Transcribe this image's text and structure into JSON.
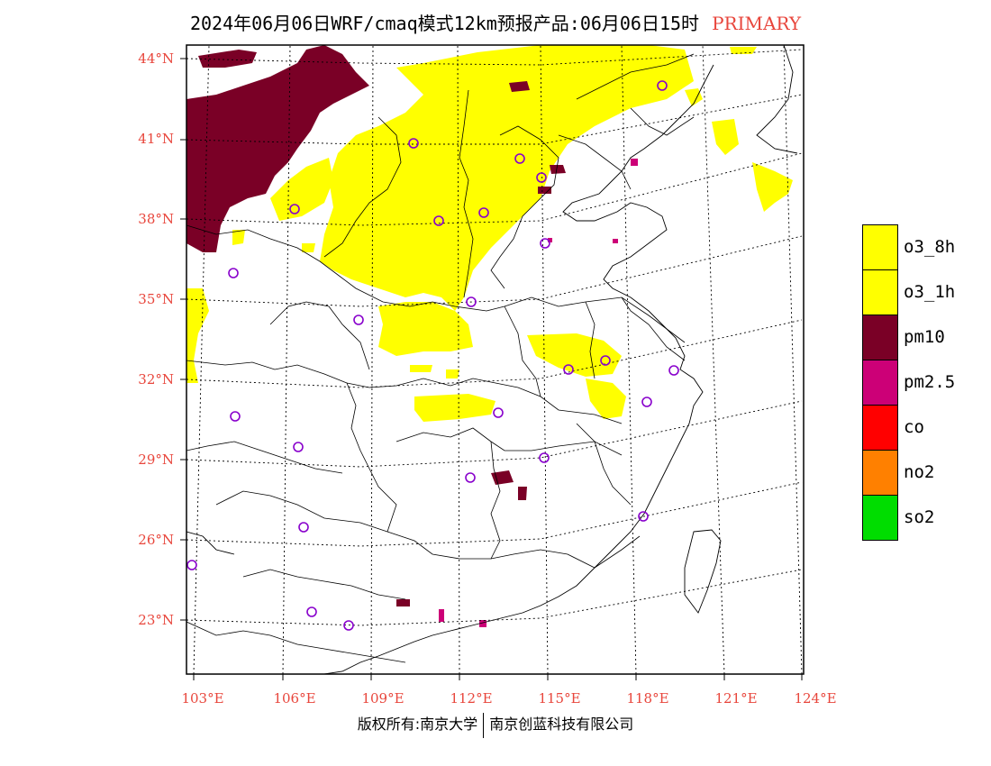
{
  "title": {
    "main": "2024年06月06日WRF/cmaq模式12km预报产品:06月06日15时",
    "tag": "PRIMARY"
  },
  "axes": {
    "lat_labels": [
      "44°N",
      "41°N",
      "38°N",
      "35°N",
      "32°N",
      "29°N",
      "26°N",
      "23°N"
    ],
    "lon_labels": [
      "103°E",
      "106°E",
      "109°E",
      "112°E",
      "115°E",
      "118°E",
      "121°E",
      "124°E"
    ],
    "label_color": "#e8463c"
  },
  "legend": [
    {
      "label": "o3_8h",
      "color": "#ffff00"
    },
    {
      "label": "o3_1h",
      "color": "#ffff00"
    },
    {
      "label": "pm10",
      "color": "#7a0026"
    },
    {
      "label": "pm2.5",
      "color": "#cc0077"
    },
    {
      "label": "co",
      "color": "#ff0000"
    },
    {
      "label": "no2",
      "color": "#ff8000"
    },
    {
      "label": "so2",
      "color": "#00dd00"
    }
  ],
  "station_marker_color": "#8800cc",
  "copyright": {
    "left": "版权所有:南京大学",
    "right": "南京创蓝科技有限公司"
  }
}
